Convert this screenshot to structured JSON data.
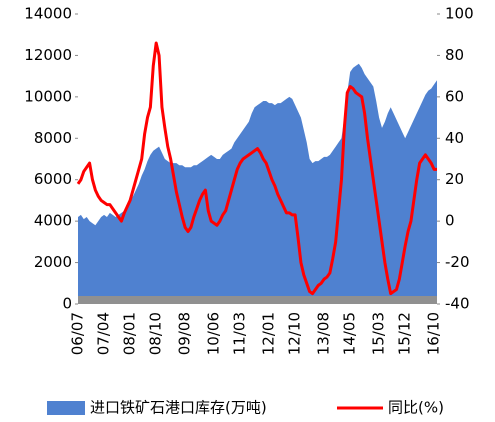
{
  "chart_data": {
    "type": "area_line",
    "categories": [
      "06/07",
      null,
      null,
      null,
      null,
      null,
      null,
      null,
      null,
      "07/04",
      null,
      null,
      null,
      null,
      null,
      null,
      null,
      null,
      "08/01",
      null,
      null,
      null,
      null,
      null,
      null,
      null,
      null,
      "08/10",
      null,
      null,
      null,
      null,
      null,
      null,
      null,
      null,
      null,
      "09/08",
      null,
      null,
      null,
      null,
      null,
      null,
      null,
      null,
      null,
      "10/06",
      null,
      null,
      null,
      null,
      null,
      null,
      null,
      null,
      "11/03",
      null,
      null,
      null,
      null,
      null,
      null,
      null,
      null,
      null,
      "12/01",
      null,
      null,
      null,
      null,
      null,
      null,
      null,
      null,
      "12/10",
      null,
      null,
      null,
      null,
      null,
      null,
      null,
      null,
      null,
      "13/08",
      null,
      null,
      null,
      null,
      null,
      null,
      null,
      null,
      "14/05",
      null,
      null,
      null,
      null,
      null,
      null,
      null,
      null,
      null,
      "15/03",
      null,
      null,
      null,
      null,
      null,
      null,
      null,
      null,
      "15/12",
      null,
      null,
      null,
      null,
      null,
      null,
      null,
      null,
      null,
      "16/10",
      null
    ],
    "series": [
      {
        "name": "进口铁矿石港口库存(万吨)",
        "type": "area",
        "color": "#4f81d0",
        "values": [
          4200,
          4300,
          4100,
          4200,
          4000,
          3900,
          3800,
          4000,
          4200,
          4300,
          4200,
          4400,
          4300,
          4200,
          4300,
          4400,
          4500,
          4800,
          5000,
          5200,
          5500,
          5800,
          6200,
          6500,
          6900,
          7200,
          7400,
          7500,
          7600,
          7300,
          7000,
          6900,
          6800,
          6800,
          6800,
          6700,
          6700,
          6600,
          6600,
          6600,
          6700,
          6700,
          6800,
          6900,
          7000,
          7100,
          7200,
          7100,
          7000,
          7000,
          7200,
          7300,
          7400,
          7500,
          7800,
          8000,
          8200,
          8400,
          8600,
          8800,
          9200,
          9500,
          9600,
          9700,
          9800,
          9800,
          9700,
          9700,
          9600,
          9700,
          9700,
          9800,
          9900,
          10000,
          9900,
          9600,
          9300,
          9000,
          8400,
          7800,
          7000,
          6800,
          6900,
          6900,
          7000,
          7100,
          7100,
          7200,
          7400,
          7600,
          7800,
          8000,
          9000,
          10200,
          11200,
          11400,
          11500,
          11600,
          11400,
          11100,
          10900,
          10700,
          10500,
          9800,
          9000,
          8500,
          8800,
          9200,
          9500,
          9200,
          8900,
          8600,
          8300,
          8000,
          8300,
          8600,
          8900,
          9200,
          9500,
          9800,
          10100,
          10300,
          10400,
          10600,
          10800
        ]
      },
      {
        "name": "同比(%)",
        "type": "line",
        "axis": "y2",
        "color": "#ff0000",
        "values": [
          18,
          20,
          24,
          26,
          28,
          20,
          15,
          12,
          10,
          9,
          8,
          8,
          6,
          4,
          2,
          0,
          4,
          7,
          10,
          15,
          20,
          25,
          30,
          42,
          50,
          55,
          75,
          86,
          80,
          55,
          45,
          36,
          30,
          22,
          14,
          8,
          2,
          -3,
          -5,
          -3,
          2,
          6,
          10,
          13,
          15,
          5,
          0,
          -1,
          -2,
          0,
          3,
          5,
          10,
          15,
          20,
          25,
          28,
          30,
          31,
          32,
          33,
          34,
          35,
          33,
          30,
          28,
          24,
          20,
          17,
          13,
          10,
          7,
          4,
          4,
          3,
          3,
          -8,
          -20,
          -26,
          -30,
          -34,
          -35,
          -33,
          -31,
          -30,
          -28,
          -27,
          -25,
          -18,
          -10,
          5,
          20,
          45,
          62,
          65,
          64,
          62,
          61,
          60,
          52,
          40,
          30,
          20,
          10,
          0,
          -10,
          -20,
          -28,
          -35,
          -34,
          -33,
          -28,
          -20,
          -12,
          -5,
          0,
          10,
          20,
          28,
          30,
          32,
          30,
          28,
          25,
          25
        ]
      }
    ],
    "ylim": [
      0,
      14000
    ],
    "yticks": [
      0,
      2000,
      4000,
      6000,
      8000,
      10000,
      12000,
      14000
    ],
    "y2lim": [
      -40,
      100
    ],
    "y2ticks": [
      -40,
      -20,
      0,
      20,
      40,
      60,
      80,
      100
    ],
    "grid": false,
    "legend": "bottom"
  }
}
